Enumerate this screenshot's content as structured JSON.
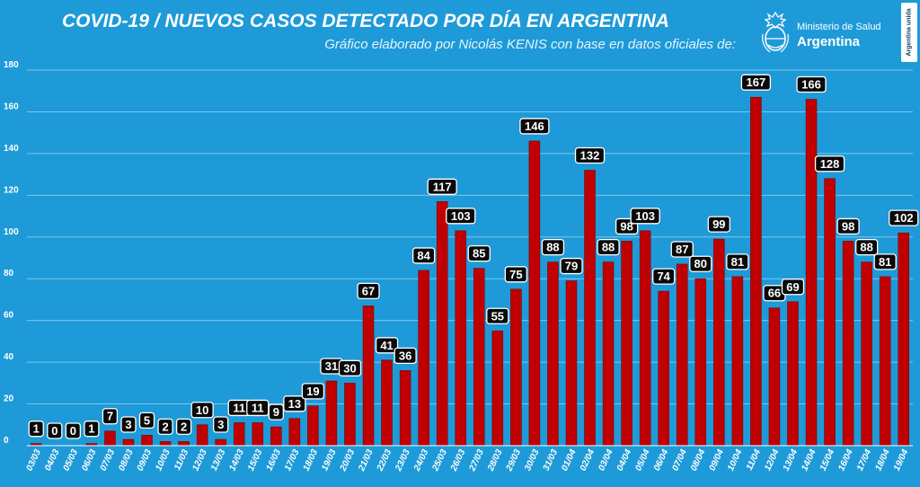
{
  "header": {
    "title": "COVID-19  /  NUEVOS CASOS DETECTADO POR DÍA EN ARGENTINA",
    "subtitle": "Gráfico elaborado por Nicolás KENIS con base en datos oficiales de:"
  },
  "logo": {
    "org": "Ministerio de Salud",
    "country": "Argentina",
    "badge": "Argentina unida"
  },
  "colors": {
    "background": "#1e9ad8",
    "bar": "#c00000",
    "bar_edge": "#7a0000",
    "label_bg": "#0a0a0a",
    "label_text": "#ffffff",
    "grid": "#7cc7ee"
  },
  "icons": [
    "argentina-coat-of-arms-icon"
  ],
  "chart_data": {
    "type": "bar",
    "title": "COVID-19  /  NUEVOS CASOS DETECTADO POR DÍA EN ARGENTINA",
    "xlabel": "",
    "ylabel": "",
    "ylim": [
      0,
      180
    ],
    "yticks": [
      0,
      20,
      40,
      60,
      80,
      100,
      120,
      140,
      160,
      180
    ],
    "grid": true,
    "legend": "none",
    "categories": [
      "03/03",
      "04/03",
      "05/03",
      "06/03",
      "07/03",
      "08/03",
      "09/03",
      "10/03",
      "11/03",
      "12/03",
      "13/03",
      "14/03",
      "15/03",
      "16/03",
      "17/03",
      "18/03",
      "19/03",
      "20/03",
      "21/03",
      "22/03",
      "23/03",
      "24/03",
      "25/03",
      "26/03",
      "27/03",
      "28/03",
      "29/03",
      "30/03",
      "31/03",
      "01/04",
      "02/04",
      "03/04",
      "04/04",
      "05/04",
      "06/04",
      "07/04",
      "08/04",
      "09/04",
      "10/04",
      "11/04",
      "12/04",
      "13/04",
      "14/04",
      "15/04",
      "16/04",
      "17/04",
      "18/04",
      "19/04"
    ],
    "values": [
      1,
      0,
      0,
      1,
      7,
      3,
      5,
      2,
      2,
      10,
      3,
      11,
      11,
      9,
      13,
      19,
      31,
      30,
      67,
      41,
      36,
      84,
      117,
      103,
      85,
      55,
      75,
      146,
      88,
      79,
      132,
      88,
      98,
      103,
      74,
      87,
      80,
      99,
      81,
      167,
      66,
      69,
      166,
      128,
      98,
      88,
      81,
      102
    ]
  }
}
